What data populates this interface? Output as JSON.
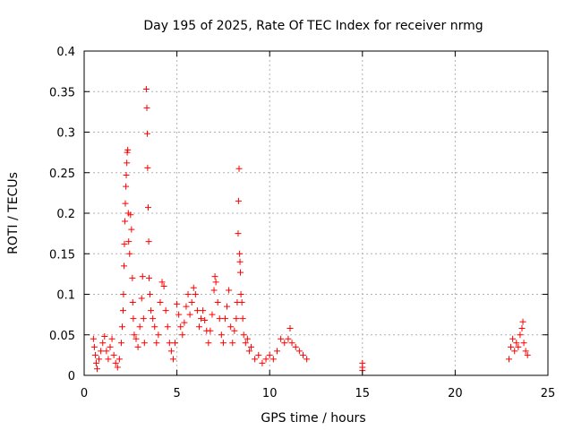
{
  "chart_data": {
    "type": "scatter",
    "title": "Day 195 of 2025, Rate Of TEC Index for receiver nrmg",
    "xlabel": "GPS time / hours",
    "ylabel": "ROTI / TECUs",
    "xlim": [
      0,
      25
    ],
    "ylim": [
      0,
      0.4
    ],
    "x_ticks": [
      0,
      5,
      10,
      15,
      20,
      25
    ],
    "x_tick_labels": [
      "0",
      "5",
      "10",
      "15",
      "20",
      "25"
    ],
    "y_ticks": [
      0,
      0.05,
      0.1,
      0.15,
      0.2,
      0.25,
      0.3,
      0.35,
      0.4
    ],
    "y_tick_labels": [
      "0",
      "0.05",
      "0.1",
      "0.15",
      "0.2",
      "0.25",
      "0.3",
      "0.35",
      "0.4"
    ],
    "grid": true,
    "marker": "+",
    "marker_color": "#ff0000",
    "series": [
      {
        "name": "ROTI",
        "points": [
          [
            0.5,
            0.045
          ],
          [
            0.55,
            0.035
          ],
          [
            0.6,
            0.025
          ],
          [
            0.65,
            0.015
          ],
          [
            0.7,
            0.008
          ],
          [
            0.8,
            0.02
          ],
          [
            0.9,
            0.03
          ],
          [
            1.0,
            0.04
          ],
          [
            1.1,
            0.048
          ],
          [
            1.2,
            0.03
          ],
          [
            1.3,
            0.02
          ],
          [
            1.4,
            0.035
          ],
          [
            1.5,
            0.045
          ],
          [
            1.6,
            0.025
          ],
          [
            1.7,
            0.015
          ],
          [
            1.8,
            0.01
          ],
          [
            1.9,
            0.02
          ],
          [
            2.0,
            0.04
          ],
          [
            2.05,
            0.06
          ],
          [
            2.1,
            0.08
          ],
          [
            2.12,
            0.1
          ],
          [
            2.15,
            0.135
          ],
          [
            2.17,
            0.162
          ],
          [
            2.2,
            0.19
          ],
          [
            2.22,
            0.212
          ],
          [
            2.25,
            0.233
          ],
          [
            2.27,
            0.247
          ],
          [
            2.3,
            0.262
          ],
          [
            2.32,
            0.275
          ],
          [
            2.35,
            0.278
          ],
          [
            2.38,
            0.2
          ],
          [
            2.4,
            0.165
          ],
          [
            2.45,
            0.15
          ],
          [
            2.5,
            0.198
          ],
          [
            2.55,
            0.18
          ],
          [
            2.6,
            0.12
          ],
          [
            2.62,
            0.09
          ],
          [
            2.65,
            0.07
          ],
          [
            2.7,
            0.05
          ],
          [
            2.8,
            0.045
          ],
          [
            2.9,
            0.035
          ],
          [
            3.0,
            0.06
          ],
          [
            3.1,
            0.095
          ],
          [
            3.15,
            0.122
          ],
          [
            3.2,
            0.07
          ],
          [
            3.25,
            0.04
          ],
          [
            3.35,
            0.353
          ],
          [
            3.38,
            0.33
          ],
          [
            3.4,
            0.298
          ],
          [
            3.42,
            0.256
          ],
          [
            3.45,
            0.207
          ],
          [
            3.48,
            0.165
          ],
          [
            3.5,
            0.12
          ],
          [
            3.55,
            0.1
          ],
          [
            3.6,
            0.08
          ],
          [
            3.7,
            0.07
          ],
          [
            3.8,
            0.06
          ],
          [
            3.9,
            0.04
          ],
          [
            4.0,
            0.05
          ],
          [
            4.1,
            0.09
          ],
          [
            4.2,
            0.115
          ],
          [
            4.3,
            0.11
          ],
          [
            4.4,
            0.08
          ],
          [
            4.5,
            0.06
          ],
          [
            4.6,
            0.04
          ],
          [
            4.7,
            0.03
          ],
          [
            4.8,
            0.02
          ],
          [
            4.9,
            0.04
          ],
          [
            5.0,
            0.088
          ],
          [
            5.1,
            0.075
          ],
          [
            5.2,
            0.06
          ],
          [
            5.3,
            0.05
          ],
          [
            5.4,
            0.065
          ],
          [
            5.5,
            0.085
          ],
          [
            5.6,
            0.1
          ],
          [
            5.7,
            0.075
          ],
          [
            5.8,
            0.09
          ],
          [
            5.9,
            0.108
          ],
          [
            6.0,
            0.1
          ],
          [
            6.1,
            0.08
          ],
          [
            6.2,
            0.06
          ],
          [
            6.3,
            0.07
          ],
          [
            6.4,
            0.08
          ],
          [
            6.5,
            0.068
          ],
          [
            6.6,
            0.055
          ],
          [
            6.7,
            0.04
          ],
          [
            6.8,
            0.055
          ],
          [
            6.9,
            0.075
          ],
          [
            7.0,
            0.105
          ],
          [
            7.05,
            0.122
          ],
          [
            7.1,
            0.115
          ],
          [
            7.2,
            0.09
          ],
          [
            7.3,
            0.07
          ],
          [
            7.4,
            0.05
          ],
          [
            7.5,
            0.04
          ],
          [
            7.6,
            0.07
          ],
          [
            7.7,
            0.085
          ],
          [
            7.8,
            0.105
          ],
          [
            7.9,
            0.06
          ],
          [
            8.0,
            0.04
          ],
          [
            8.1,
            0.055
          ],
          [
            8.2,
            0.07
          ],
          [
            8.25,
            0.09
          ],
          [
            8.3,
            0.175
          ],
          [
            8.32,
            0.215
          ],
          [
            8.35,
            0.255
          ],
          [
            8.38,
            0.15
          ],
          [
            8.4,
            0.14
          ],
          [
            8.42,
            0.127
          ],
          [
            8.45,
            0.1
          ],
          [
            8.5,
            0.09
          ],
          [
            8.55,
            0.07
          ],
          [
            8.6,
            0.05
          ],
          [
            8.7,
            0.04
          ],
          [
            8.8,
            0.045
          ],
          [
            8.9,
            0.03
          ],
          [
            9.0,
            0.035
          ],
          [
            9.2,
            0.02
          ],
          [
            9.4,
            0.025
          ],
          [
            9.6,
            0.015
          ],
          [
            9.8,
            0.02
          ],
          [
            10.0,
            0.025
          ],
          [
            10.2,
            0.02
          ],
          [
            10.4,
            0.03
          ],
          [
            10.6,
            0.045
          ],
          [
            10.8,
            0.04
          ],
          [
            11.0,
            0.045
          ],
          [
            11.1,
            0.058
          ],
          [
            11.2,
            0.04
          ],
          [
            11.4,
            0.035
          ],
          [
            11.6,
            0.03
          ],
          [
            11.8,
            0.025
          ],
          [
            12.0,
            0.02
          ],
          [
            15.0,
            0.015
          ],
          [
            15.0,
            0.01
          ],
          [
            15.0,
            0.006
          ],
          [
            22.9,
            0.02
          ],
          [
            23.0,
            0.035
          ],
          [
            23.1,
            0.045
          ],
          [
            23.2,
            0.03
          ],
          [
            23.3,
            0.04
          ],
          [
            23.4,
            0.035
          ],
          [
            23.5,
            0.05
          ],
          [
            23.6,
            0.058
          ],
          [
            23.65,
            0.066
          ],
          [
            23.7,
            0.04
          ],
          [
            23.8,
            0.03
          ],
          [
            23.9,
            0.025
          ]
        ]
      }
    ]
  }
}
